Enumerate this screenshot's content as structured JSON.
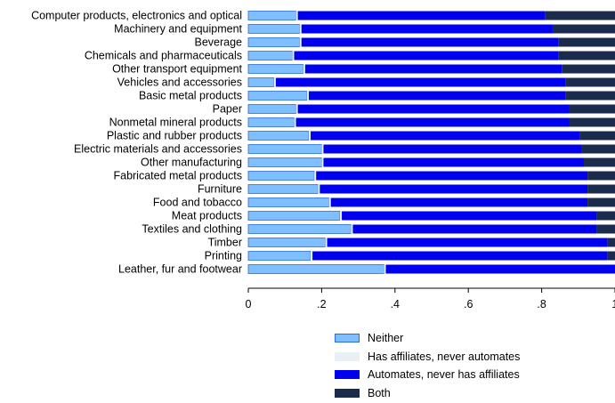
{
  "chart_data": {
    "type": "bar",
    "orientation": "horizontal",
    "stacked": true,
    "categories": [
      "Computer products, electronics and optical",
      "Machinery and equipment",
      "Beverage",
      "Chemicals and pharmaceuticals",
      "Other transport equipment",
      "Vehicles and accessories",
      "Basic metal products",
      "Paper",
      "Nonmetal mineral products",
      "Plastic and rubber products",
      "Electric materials and accessories",
      "Other manufacturing",
      "Fabricated metal products",
      "Furniture",
      "Food and tobacco",
      "Meat products",
      "Textiles and clothing",
      "Timber",
      "Printing",
      "Leather, fur and footwear"
    ],
    "series": [
      {
        "name": "Neither",
        "color": "#7fbfff",
        "border": "#2a6fd6",
        "values": [
          0.13,
          0.14,
          0.14,
          0.12,
          0.15,
          0.07,
          0.16,
          0.13,
          0.125,
          0.165,
          0.2,
          0.2,
          0.18,
          0.19,
          0.22,
          0.25,
          0.28,
          0.21,
          0.17,
          0.37
        ]
      },
      {
        "name": "Has affiliates, never automates",
        "color": "#e8f0f5",
        "border": "#e8f0f5",
        "values": [
          0.005,
          0.005,
          0.005,
          0.005,
          0.005,
          0.005,
          0.005,
          0.005,
          0.005,
          0.005,
          0.005,
          0.005,
          0.005,
          0.005,
          0.005,
          0.005,
          0.005,
          0.005,
          0.005,
          0.005
        ]
      },
      {
        "name": "Automates, never has affiliates",
        "color": "#0000ee",
        "border": "#0000ee",
        "values": [
          0.675,
          0.685,
          0.7,
          0.72,
          0.7,
          0.79,
          0.7,
          0.74,
          0.745,
          0.735,
          0.705,
          0.71,
          0.74,
          0.73,
          0.7,
          0.695,
          0.665,
          0.765,
          0.805,
          0.625
        ]
      },
      {
        "name": "Both",
        "color": "#1a2b4c",
        "border": "#1a2b4c",
        "values": [
          0.19,
          0.17,
          0.155,
          0.155,
          0.145,
          0.135,
          0.135,
          0.125,
          0.125,
          0.095,
          0.09,
          0.085,
          0.075,
          0.075,
          0.075,
          0.05,
          0.05,
          0.02,
          0.02,
          0.0
        ]
      }
    ],
    "x_ticks": [
      "0",
      ".2",
      ".4",
      ".6",
      ".8",
      "1"
    ],
    "xlim": [
      0,
      1
    ],
    "grid": false,
    "legend_position": "bottom"
  }
}
